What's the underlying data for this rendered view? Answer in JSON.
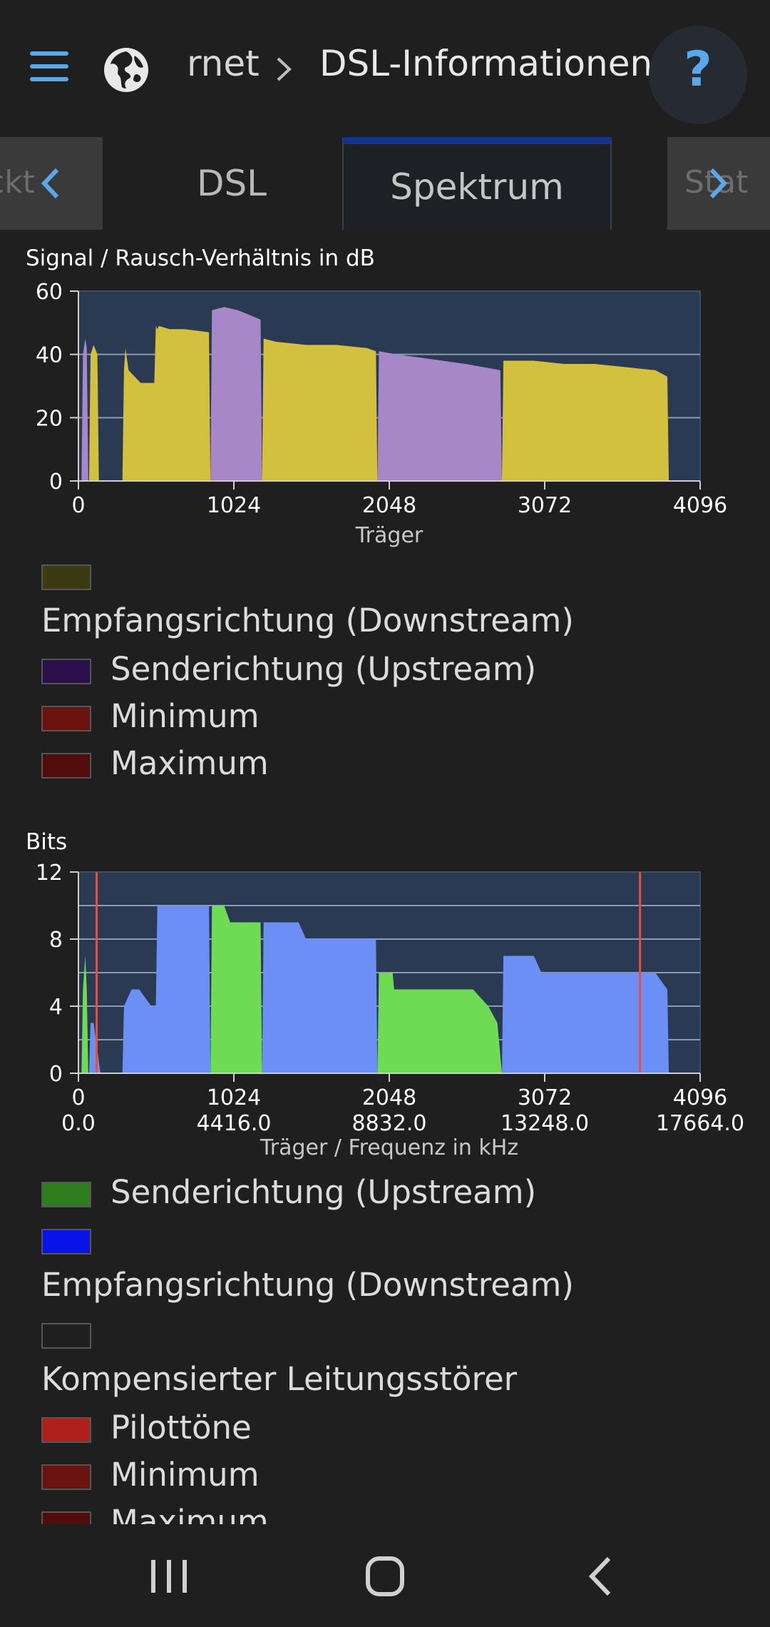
{
  "header": {
    "breadcrumb_parent": "rnet",
    "page_title": "DSL-Informationen",
    "help_label": "?"
  },
  "tabs": {
    "left_ghost": "ckt",
    "items": [
      {
        "label": "DSL",
        "active": false
      },
      {
        "label": "Spektrum",
        "active": true
      }
    ],
    "right_ghost": "Stat"
  },
  "snr_chart": {
    "title": "Signal / Rausch-Verhältnis in dB",
    "xlabel": "Träger",
    "legend": [
      {
        "label": "Empfangsrichtung (Downstream)",
        "color": "#3b3a12",
        "wrap": true
      },
      {
        "label": "Senderichtung (Upstream)",
        "color": "#2a0f4a",
        "wrap": false
      },
      {
        "label": "Minimum",
        "color": "#6b140f",
        "wrap": false
      },
      {
        "label": "Maximum",
        "color": "#520c0c",
        "wrap": false
      }
    ]
  },
  "bits_chart": {
    "title": "Bits",
    "xlabel": "Träger / Frequenz in kHz",
    "legend": [
      {
        "label": "Senderichtung (Upstream)",
        "color": "#2e7d1e",
        "wrap": false
      },
      {
        "label": "Empfangsrichtung (Downstream)",
        "color": "#0a14e6",
        "wrap": true
      },
      {
        "label": "Kompensierter Leitungsstörer",
        "color": "#1f1f1f",
        "wrap": true
      },
      {
        "label": "Pilottöne",
        "color": "#b0201a",
        "wrap": false
      },
      {
        "label": "Minimum",
        "color": "#6b140f",
        "wrap": false
      },
      {
        "label": "Maximum",
        "color": "#520c0c",
        "wrap": false
      }
    ]
  },
  "chart_data": [
    {
      "type": "area",
      "title": "Signal / Rausch-Verhältnis in dB",
      "xlabel": "Träger",
      "ylabel": "",
      "xlim": [
        0,
        4096
      ],
      "ylim": [
        0,
        60
      ],
      "xticks": [
        0,
        1024,
        2048,
        3072,
        4096
      ],
      "yticks": [
        0,
        20,
        40,
        60
      ],
      "grid": true,
      "series": [
        {
          "name": "Senderichtung (Upstream)",
          "color": "#a887c9",
          "segments": [
            {
              "x": [
                20,
                30,
                45,
                55,
                65
              ],
              "y": [
                0,
                40,
                45,
                42,
                0
              ]
            },
            {
              "x": [
                870,
                880,
                960,
                1050,
                1100,
                1200,
                1210
              ],
              "y": [
                0,
                54,
                55,
                54,
                53,
                51,
                0
              ]
            },
            {
              "x": [
                1970,
                1980,
                2100,
                2250,
                2400,
                2550,
                2780,
                2790
              ],
              "y": [
                0,
                41,
                40,
                39,
                38,
                37,
                35,
                0
              ]
            }
          ]
        },
        {
          "name": "Empfangsrichtung (Downstream)",
          "color": "#d3c03e",
          "segments": [
            {
              "x": [
                70,
                80,
                100,
                125,
                135
              ],
              "y": [
                0,
                40,
                43,
                40,
                0
              ]
            },
            {
              "x": [
                290,
                300,
                310,
                330,
                370,
                410,
                500,
                510,
                520,
                530,
                600,
                700,
                860,
                870
              ],
              "y": [
                0,
                35,
                42,
                35,
                33,
                31,
                31,
                49,
                48,
                49,
                48,
                48,
                47,
                0
              ]
            },
            {
              "x": [
                1210,
                1220,
                1300,
                1500,
                1700,
                1900,
                1960,
                1970
              ],
              "y": [
                0,
                45,
                44,
                43,
                43,
                42,
                41,
                0
              ]
            },
            {
              "x": [
                2790,
                2800,
                3000,
                3200,
                3400,
                3600,
                3800,
                3880,
                3890
              ],
              "y": [
                0,
                38,
                38,
                37,
                37,
                36,
                35,
                33,
                0
              ]
            }
          ]
        }
      ]
    },
    {
      "type": "area",
      "title": "Bits",
      "xlabel": "Träger / Frequenz in kHz",
      "ylabel": "",
      "xlim": [
        0,
        4096
      ],
      "ylim": [
        0,
        12
      ],
      "xticks": [
        0,
        1024,
        2048,
        3072,
        4096
      ],
      "xticks_secondary": [
        "0.0",
        "4416.0",
        "8832.0",
        "13248.0",
        "17664.0"
      ],
      "yticks": [
        0,
        4,
        8,
        12
      ],
      "grid": true,
      "series": [
        {
          "name": "Senderichtung (Upstream)",
          "color": "#6fdb55",
          "segments": [
            {
              "x": [
                20,
                30,
                45,
                55,
                65
              ],
              "y": [
                0,
                5,
                7,
                5,
                0
              ]
            },
            {
              "x": [
                870,
                880,
                960,
                1000,
                1010,
                1200,
                1210
              ],
              "y": [
                0,
                10,
                10,
                9,
                9,
                9,
                0
              ]
            },
            {
              "x": [
                1970,
                1980,
                2070,
                2080,
                2400,
                2600,
                2700,
                2760,
                2790
              ],
              "y": [
                0,
                6,
                6,
                5,
                5,
                5,
                4,
                3,
                0
              ]
            }
          ]
        },
        {
          "name": "Empfangsrichtung (Downstream)",
          "color": "#6b8ff5",
          "segments": [
            {
              "x": [
                70,
                80,
                100,
                130,
                145
              ],
              "y": [
                0,
                3,
                3,
                1,
                0
              ]
            },
            {
              "x": [
                290,
                300,
                350,
                400,
                480,
                510,
                520,
                860,
                870
              ],
              "y": [
                0,
                4,
                5,
                5,
                4,
                4,
                10,
                10,
                0
              ]
            },
            {
              "x": [
                1210,
                1220,
                1450,
                1500,
                1700,
                1960,
                1970
              ],
              "y": [
                0,
                9,
                9,
                8,
                8,
                8,
                0
              ]
            },
            {
              "x": [
                2790,
                2800,
                3000,
                3050,
                3300,
                3600,
                3800,
                3880,
                3890
              ],
              "y": [
                0,
                7,
                7,
                6,
                6,
                6,
                6,
                5,
                0
              ]
            }
          ]
        },
        {
          "name": "Pilottöne",
          "color": "#d9534f",
          "type": "vline",
          "x": [
            120,
            3700
          ]
        }
      ]
    }
  ]
}
